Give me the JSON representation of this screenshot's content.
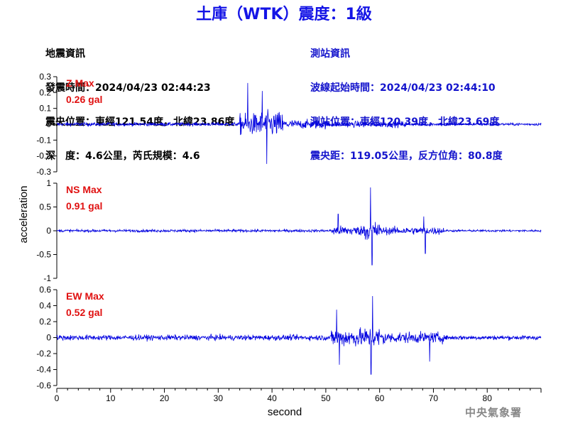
{
  "title": "土庫（WTK）震度：1級",
  "left_info": {
    "heading": "地震資訊",
    "time": "發震時間：2024/04/23 02:44:23",
    "location": "震央位置：東經121.54度，北緯23.86度",
    "depth": "深　度：4.6公里，芮氏規模：4.6"
  },
  "right_info": {
    "heading": "測站資訊",
    "start": "波線起始時間：2024/04/23 02:44:10",
    "location": "測站位置：東經120.39度，北緯23.69度",
    "distance": "震央距：119.05公里，反方位角：80.8度"
  },
  "credit": "中央氣象署",
  "colors": {
    "trace": "#0000e0",
    "max_label": "#e01010",
    "title": "#1414e6"
  },
  "chart_data": {
    "type": "line",
    "xlabel": "second",
    "ylabel": "acceleration",
    "xlim": [
      0,
      90
    ],
    "xticks": [
      0,
      10,
      20,
      30,
      40,
      50,
      60,
      70,
      80
    ],
    "panels": [
      {
        "name": "Z",
        "max_label": "Z Max",
        "max_value": "0.26 gal",
        "ylim": [
          -0.3,
          0.3
        ],
        "yticks": [
          0.3,
          0.2,
          0.1,
          0,
          -0.1,
          -0.2,
          -0.3
        ],
        "ytick_labels": [
          "0.3",
          "0.2",
          "0.1",
          "0",
          "-0.1",
          "-0.2",
          "-0.3"
        ],
        "segments": [
          {
            "t0": 0,
            "t1": 34,
            "amp": 0.02
          },
          {
            "t0": 34,
            "t1": 37,
            "amp": 0.12
          },
          {
            "t0": 37,
            "t1": 42,
            "amp": 0.14
          },
          {
            "t0": 42,
            "t1": 50,
            "amp": 0.05
          },
          {
            "t0": 50,
            "t1": 65,
            "amp": 0.035
          },
          {
            "t0": 65,
            "t1": 90,
            "amp": 0.015
          }
        ],
        "peaks": [
          {
            "t": 35.5,
            "v": 0.26
          },
          {
            "t": 39.0,
            "v": -0.25
          },
          {
            "t": 38.2,
            "v": 0.21
          }
        ]
      },
      {
        "name": "NS",
        "max_label": "NS Max",
        "max_value": "0.91 gal",
        "ylim": [
          -1,
          1
        ],
        "yticks": [
          1,
          0.5,
          0,
          -0.5,
          -1
        ],
        "ytick_labels": [
          "1",
          "0.5",
          "0",
          "-0.5",
          "-1"
        ],
        "segments": [
          {
            "t0": 0,
            "t1": 51,
            "amp": 0.05
          },
          {
            "t0": 51,
            "t1": 57,
            "amp": 0.18
          },
          {
            "t0": 57,
            "t1": 60,
            "amp": 0.35
          },
          {
            "t0": 60,
            "t1": 72,
            "amp": 0.14
          },
          {
            "t0": 72,
            "t1": 90,
            "amp": 0.04
          }
        ],
        "peaks": [
          {
            "t": 58.3,
            "v": 0.91
          },
          {
            "t": 58.6,
            "v": -0.72
          },
          {
            "t": 52.3,
            "v": 0.35
          },
          {
            "t": 68.5,
            "v": -0.48
          },
          {
            "t": 68.2,
            "v": 0.3
          }
        ]
      },
      {
        "name": "EW",
        "max_label": "EW Max",
        "max_value": "0.52 gal",
        "ylim": [
          -0.6,
          0.6
        ],
        "yticks": [
          0.6,
          0.4,
          0.2,
          0,
          -0.2,
          -0.4,
          -0.6
        ],
        "ytick_labels": [
          "0.6",
          "0.4",
          "0.2",
          "0",
          "-0.2",
          "-0.4",
          "-0.6"
        ],
        "segments": [
          {
            "t0": 0,
            "t1": 51,
            "amp": 0.06
          },
          {
            "t0": 51,
            "t1": 57,
            "amp": 0.2
          },
          {
            "t0": 57,
            "t1": 61,
            "amp": 0.22
          },
          {
            "t0": 61,
            "t1": 72,
            "amp": 0.12
          },
          {
            "t0": 72,
            "t1": 90,
            "amp": 0.05
          }
        ],
        "peaks": [
          {
            "t": 58.7,
            "v": 0.52
          },
          {
            "t": 58.4,
            "v": -0.46
          },
          {
            "t": 52.5,
            "v": -0.34
          },
          {
            "t": 52.0,
            "v": 0.35
          },
          {
            "t": 69.3,
            "v": -0.3
          }
        ]
      }
    ]
  }
}
